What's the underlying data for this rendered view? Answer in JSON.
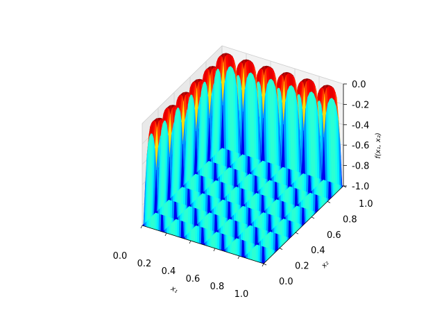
{
  "chart_data": {
    "type": "surface3d",
    "title": "",
    "colormap": "jet",
    "grid": true,
    "pane_color": "#f2f2f2",
    "contour_floor": true,
    "x": {
      "label": "x₁",
      "range": [
        0,
        1
      ],
      "ticks": [
        "0.0",
        "0.2",
        "0.4",
        "0.6",
        "0.8",
        "1.0"
      ]
    },
    "y": {
      "label": "x₂",
      "range": [
        0,
        1
      ],
      "ticks": [
        "0.0",
        "0.2",
        "0.4",
        "0.6",
        "0.8",
        "1.0"
      ]
    },
    "z": {
      "label": "f(x₁, x₂)",
      "range": [
        -1.0,
        0.0
      ],
      "ticks": [
        "-1.0",
        "-0.8",
        "-0.6",
        "-0.4",
        "-0.2",
        "0.0"
      ]
    },
    "function": {
      "description": "periodic egg-crate surface with ~6 wells per axis",
      "wells_per_axis": 6,
      "z_min": -1.0,
      "z_max": 0.0
    },
    "z_samples": {
      "x": [
        0.0,
        0.083,
        0.167,
        0.25,
        0.333,
        0.417,
        0.5,
        0.583,
        0.667,
        0.75,
        0.833,
        0.917,
        1.0
      ],
      "y_at_0.083": [
        -0.02,
        -0.95,
        -0.02,
        -0.95,
        -0.02,
        -0.95,
        -0.02,
        -0.95,
        -0.02,
        -0.95,
        -0.02,
        -0.95,
        -0.02
      ]
    }
  }
}
